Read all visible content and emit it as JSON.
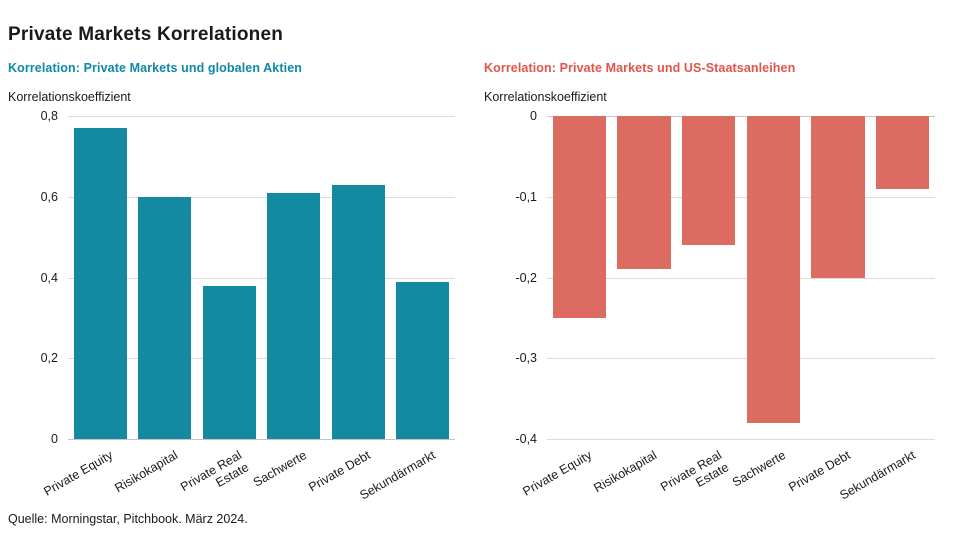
{
  "page": {
    "title": "Private Markets Korrelationen",
    "source": "Quelle: Morningstar, Pitchbook. März 2024.",
    "background_color": "#FFFFFF"
  },
  "chart_data": [
    {
      "type": "bar",
      "title": "Korrelation: Private Markets und globalen Aktien",
      "title_color": "#0F89A4",
      "ylabel": "Korrelationskoeffizient",
      "xlabel": "",
      "categories": [
        "Private Equity",
        "Risikokapital",
        "Private Real\nEstate",
        "Sachwerte",
        "Private Debt",
        "Sekundärmarkt"
      ],
      "values": [
        0.77,
        0.6,
        0.38,
        0.61,
        0.63,
        0.39
      ],
      "bar_color": "#1389A2",
      "direction": "up",
      "ylim": [
        0,
        0.8
      ],
      "ticks": [
        {
          "v": 0.8,
          "label": "0,8"
        },
        {
          "v": 0.6,
          "label": "0,6"
        },
        {
          "v": 0.4,
          "label": "0,4"
        },
        {
          "v": 0.2,
          "label": "0,2"
        },
        {
          "v": 0,
          "label": "0"
        }
      ],
      "grid": true,
      "legend": "none"
    },
    {
      "type": "bar",
      "title": "Korrelation: Private Markets und US-Staatsanleihen",
      "title_color": "#E2544A",
      "ylabel": "Korrelationskoeffizient",
      "xlabel": "",
      "categories": [
        "Private Equity",
        "Risikokapital",
        "Private Real\nEstate",
        "Sachwerte",
        "Private Debt",
        "Sekundärmarkt"
      ],
      "values": [
        -0.25,
        -0.19,
        -0.16,
        -0.38,
        -0.2,
        -0.09
      ],
      "bar_color": "#DC6B62",
      "direction": "down",
      "ylim": [
        -0.4,
        0
      ],
      "ticks": [
        {
          "v": 0,
          "label": "0"
        },
        {
          "v": -0.1,
          "label": "-0,1"
        },
        {
          "v": -0.2,
          "label": "-0,2"
        },
        {
          "v": -0.3,
          "label": "-0,3"
        },
        {
          "v": -0.4,
          "label": "-0,4"
        }
      ],
      "grid": true,
      "legend": "none"
    }
  ]
}
